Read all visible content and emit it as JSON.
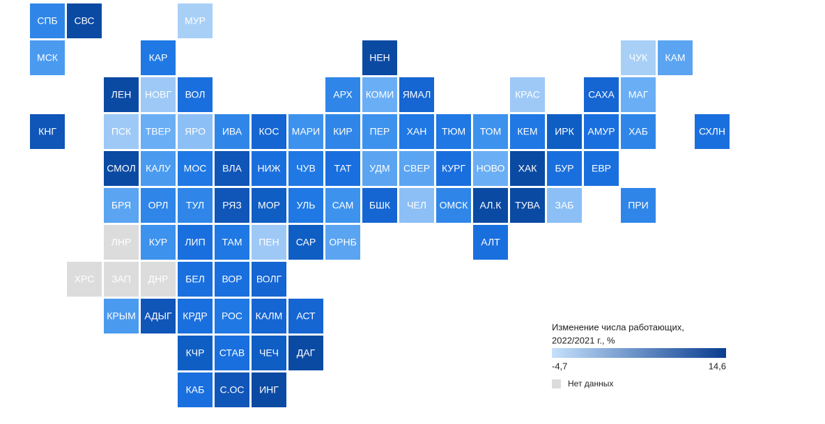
{
  "tiles": [
    {
      "label": "СПБ",
      "color": "#2f86e8"
    },
    {
      "label": "СВС",
      "color": "#0b4aa3"
    },
    {
      "label": "МУР",
      "color": "#a8d0f7"
    },
    {
      "label": "МСК",
      "color": "#4a9af0"
    },
    {
      "label": "КАР",
      "color": "#1f78e4"
    },
    {
      "label": "НЕН",
      "color": "#0b4aa3"
    },
    {
      "label": "ЧУК",
      "color": "#a8d0f7"
    },
    {
      "label": "КАМ",
      "color": "#5aa4f2"
    },
    {
      "label": "ЛЕН",
      "color": "#0b4aa3"
    },
    {
      "label": "НОВГ",
      "color": "#9ec9f7"
    },
    {
      "label": "ВОЛ",
      "color": "#1a6fde"
    },
    {
      "label": "АРХ",
      "color": "#2f86e8"
    },
    {
      "label": "КОМИ",
      "color": "#6aaef5"
    },
    {
      "label": "ЯМАЛ",
      "color": "#1565d2"
    },
    {
      "label": "КРАС",
      "color": "#9ec9f7"
    },
    {
      "label": "САХА",
      "color": "#1565d2"
    },
    {
      "label": "МАГ",
      "color": "#6aaef5"
    },
    {
      "label": "КНГ",
      "color": "#1055b8"
    },
    {
      "label": "ПСК",
      "color": "#9ec9f7"
    },
    {
      "label": "ТВЕР",
      "color": "#6aaef5"
    },
    {
      "label": "ЯРО",
      "color": "#8cbff6"
    },
    {
      "label": "ИВА",
      "color": "#2f86e8"
    },
    {
      "label": "КОС",
      "color": "#1565d2"
    },
    {
      "label": "МАРИ",
      "color": "#3d92ee"
    },
    {
      "label": "КИР",
      "color": "#2f86e8"
    },
    {
      "label": "ПЕР",
      "color": "#3d92ee"
    },
    {
      "label": "ХАН",
      "color": "#1f78e4"
    },
    {
      "label": "ТЮМ",
      "color": "#1f78e4"
    },
    {
      "label": "ТОМ",
      "color": "#3d92ee"
    },
    {
      "label": "КЕМ",
      "color": "#1f78e4"
    },
    {
      "label": "ИРК",
      "color": "#0f5ec4"
    },
    {
      "label": "АМУР",
      "color": "#1a6fde"
    },
    {
      "label": "ХАБ",
      "color": "#2f86e8"
    },
    {
      "label": "СХЛН",
      "color": "#1a6fde"
    },
    {
      "label": "СМОЛ",
      "color": "#0b4aa3"
    },
    {
      "label": "КАЛУ",
      "color": "#4a9af0"
    },
    {
      "label": "МОС",
      "color": "#1f78e4"
    },
    {
      "label": "ВЛА",
      "color": "#1055b8"
    },
    {
      "label": "НИЖ",
      "color": "#1a6fde"
    },
    {
      "label": "ЧУВ",
      "color": "#1f78e4"
    },
    {
      "label": "ТАТ",
      "color": "#1a6fde"
    },
    {
      "label": "УДМ",
      "color": "#5aa4f2"
    },
    {
      "label": "СВЕР",
      "color": "#5aa4f2"
    },
    {
      "label": "КУРГ",
      "color": "#1a6fde"
    },
    {
      "label": "НОВО",
      "color": "#6aaef5"
    },
    {
      "label": "ХАК",
      "color": "#0b4aa3"
    },
    {
      "label": "БУР",
      "color": "#1a6fde"
    },
    {
      "label": "ЕВР",
      "color": "#1a6fde"
    },
    {
      "label": "БРЯ",
      "color": "#5aa4f2"
    },
    {
      "label": "ОРЛ",
      "color": "#2f86e8"
    },
    {
      "label": "ТУЛ",
      "color": "#2f86e8"
    },
    {
      "label": "РЯЗ",
      "color": "#1055b8"
    },
    {
      "label": "МОР",
      "color": "#0f5ec4"
    },
    {
      "label": "УЛЬ",
      "color": "#1f78e4"
    },
    {
      "label": "САМ",
      "color": "#3d92ee"
    },
    {
      "label": "БШК",
      "color": "#1565d2"
    },
    {
      "label": "ЧЕЛ",
      "color": "#8cbff6"
    },
    {
      "label": "ОМСК",
      "color": "#2f86e8"
    },
    {
      "label": "АЛ.К",
      "color": "#0b4aa3"
    },
    {
      "label": "ТУВА",
      "color": "#0b4aa3"
    },
    {
      "label": "ЗАБ",
      "color": "#8cbff6"
    },
    {
      "label": "ПРИ",
      "color": "#2f86e8"
    },
    {
      "label": "ЛНР",
      "color": "#dcdcdc"
    },
    {
      "label": "КУР",
      "color": "#3d92ee"
    },
    {
      "label": "ЛИП",
      "color": "#1a6fde"
    },
    {
      "label": "ТАМ",
      "color": "#1f78e4"
    },
    {
      "label": "ПЕН",
      "color": "#9ec9f7"
    },
    {
      "label": "САР",
      "color": "#0f5ec4"
    },
    {
      "label": "ОРНБ",
      "color": "#5aa4f2"
    },
    {
      "label": "АЛТ",
      "color": "#1a6fde"
    },
    {
      "label": "ХРС",
      "color": "#dcdcdc"
    },
    {
      "label": "ЗАП",
      "color": "#dcdcdc"
    },
    {
      "label": "ДНР",
      "color": "#dcdcdc"
    },
    {
      "label": "БЕЛ",
      "color": "#1a6fde"
    },
    {
      "label": "ВОР",
      "color": "#1a6fde"
    },
    {
      "label": "ВОЛГ",
      "color": "#1565d2"
    },
    {
      "label": "КРЫМ",
      "color": "#4a9af0"
    },
    {
      "label": "АДЫГ",
      "color": "#1055b8"
    },
    {
      "label": "КРДР",
      "color": "#1a6fde"
    },
    {
      "label": "РОС",
      "color": "#1f78e4"
    },
    {
      "label": "КАЛМ",
      "color": "#1565d2"
    },
    {
      "label": "АСТ",
      "color": "#1565d2"
    },
    {
      "label": "КЧР",
      "color": "#0f5ec4"
    },
    {
      "label": "СТАВ",
      "color": "#1a6fde"
    },
    {
      "label": "ЧЕЧ",
      "color": "#0f5ec4"
    },
    {
      "label": "ДАГ",
      "color": "#0b4aa3"
    },
    {
      "label": "КАБ",
      "color": "#1a6fde"
    },
    {
      "label": "С.ОС",
      "color": "#1055b8"
    },
    {
      "label": "ИНГ",
      "color": "#0b4aa3"
    }
  ],
  "legend": {
    "title": [
      "Изменение числа работающих,",
      "2022/2021 г., %"
    ],
    "min_label": "-4,7",
    "max_label": "14,6",
    "colors": [
      "#c5e0fb",
      "#0a3d8f"
    ],
    "no_data": "Нет данных",
    "no_data_color": "#dcdcdc"
  }
}
